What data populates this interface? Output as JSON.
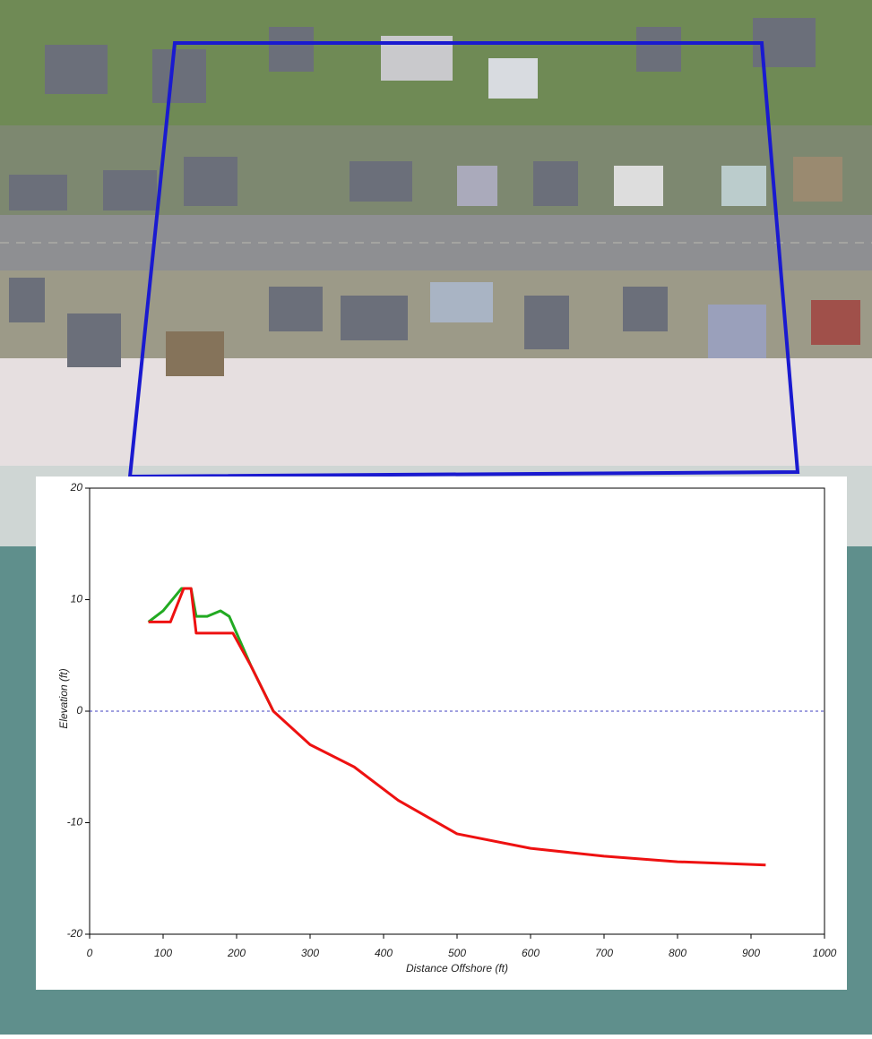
{
  "chart_data": {
    "type": "line",
    "x_label": "Distance Offshore (ft)",
    "y_label": "Elevation (ft)",
    "xlim": [
      0,
      1000
    ],
    "xticks": [
      0,
      100,
      200,
      300,
      400,
      500,
      600,
      700,
      800,
      900,
      1000
    ],
    "ylim": [
      -20,
      20
    ],
    "yticks": [
      -20,
      -10,
      0,
      10,
      20
    ],
    "reference_line": 0,
    "series": [
      {
        "color": "#22aa22",
        "x": [
          80,
          100,
          125,
          138,
          145,
          160,
          178,
          190,
          200,
          220,
          250
        ],
        "values": [
          8,
          9,
          11,
          11,
          8.5,
          8.5,
          9,
          8.5,
          7,
          4,
          0
        ]
      },
      {
        "color": "#ee1111",
        "x": [
          80,
          110,
          128,
          138,
          145,
          195,
          220,
          250,
          300,
          360,
          420,
          500,
          600,
          700,
          800,
          920
        ],
        "values": [
          8,
          8,
          11,
          11,
          7,
          7,
          4,
          0,
          -3,
          -5,
          -8,
          -11,
          -12.3,
          -13,
          -13.5,
          -13.8
        ]
      }
    ]
  }
}
